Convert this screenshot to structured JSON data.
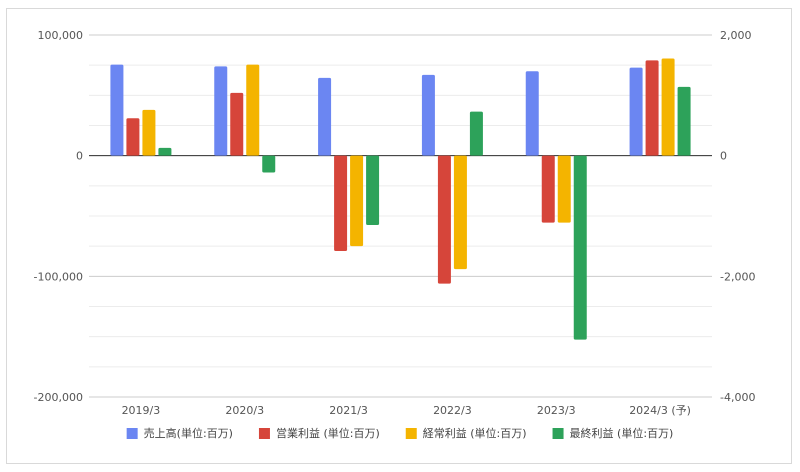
{
  "chart_data": {
    "type": "bar",
    "title": "",
    "categories": [
      "2019/3",
      "2020/3",
      "2021/3",
      "2022/3",
      "2023/3",
      "2024/3 (予)"
    ],
    "series": [
      {
        "name": "売上高(単位:百万)",
        "axis": "left",
        "color": "#6b86f2",
        "values": [
          75500,
          74000,
          64500,
          67000,
          70000,
          73000
        ]
      },
      {
        "name": "営業利益 (単位:百万)",
        "axis": "right",
        "color": "#d6453a",
        "values": [
          620,
          1040,
          -1580,
          -2120,
          -1110,
          1580
        ]
      },
      {
        "name": "経常利益 (単位:百万)",
        "axis": "right",
        "color": "#f4b400",
        "values": [
          760,
          1510,
          -1500,
          -1880,
          -1110,
          1610
        ]
      },
      {
        "name": "最終利益 (単位:百万)",
        "axis": "right",
        "color": "#2da25a",
        "values": [
          130,
          -280,
          -1150,
          730,
          -3050,
          1140
        ]
      }
    ],
    "y_left": {
      "min": -200000,
      "max": 100000,
      "ticks": [
        100000,
        0,
        -100000,
        -200000
      ],
      "tick_labels": [
        "100,000",
        "0",
        "-100,000",
        "-200,000"
      ]
    },
    "y_right": {
      "min": -4000,
      "max": 2000,
      "ticks": [
        2000,
        0,
        -2000,
        -4000
      ],
      "tick_labels": [
        "2,000",
        "0",
        "-2,000",
        "-4,000"
      ]
    },
    "grid": true,
    "legend_position": "bottom"
  }
}
